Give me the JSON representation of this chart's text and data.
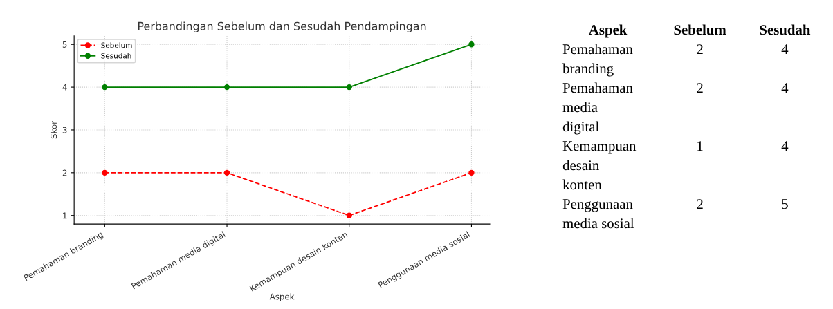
{
  "chart_data": [
    {
      "type": "line",
      "title": "Perbandingan Sebelum dan Sesudah Pendampingan",
      "xlabel": "Aspek",
      "ylabel": "Skor",
      "categories": [
        "Pemahaman branding",
        "Pemahaman media digital",
        "Kemampuan desain konten",
        "Penggunaan media sosial"
      ],
      "series": [
        {
          "name": "Sebelum",
          "color": "#ff0000",
          "values": [
            2,
            2,
            1,
            2
          ],
          "line_style": "dashed"
        },
        {
          "name": "Sesudah",
          "color": "#008000",
          "values": [
            4,
            4,
            4,
            5
          ],
          "line_style": "solid"
        }
      ],
      "ylim": [
        0.8,
        5.2
      ],
      "yticks": [
        1,
        2,
        3,
        4,
        5
      ],
      "grid": true,
      "legend": "top left",
      "marker": "circle"
    },
    {
      "type": "other",
      "xlabel": "Aspek",
      "categories": [
        "Pemahaman branding",
        "Pemahaman media digital",
        "Kemampuan desain konten",
        "Penggunaan media sosial"
      ],
      "series": [
        {
          "name": "Sebelum",
          "values": [
            2,
            2,
            1,
            2
          ]
        },
        {
          "name": "Sesudah",
          "values": [
            4,
            4,
            4,
            5
          ]
        }
      ],
      "data_labels": true
    }
  ]
}
